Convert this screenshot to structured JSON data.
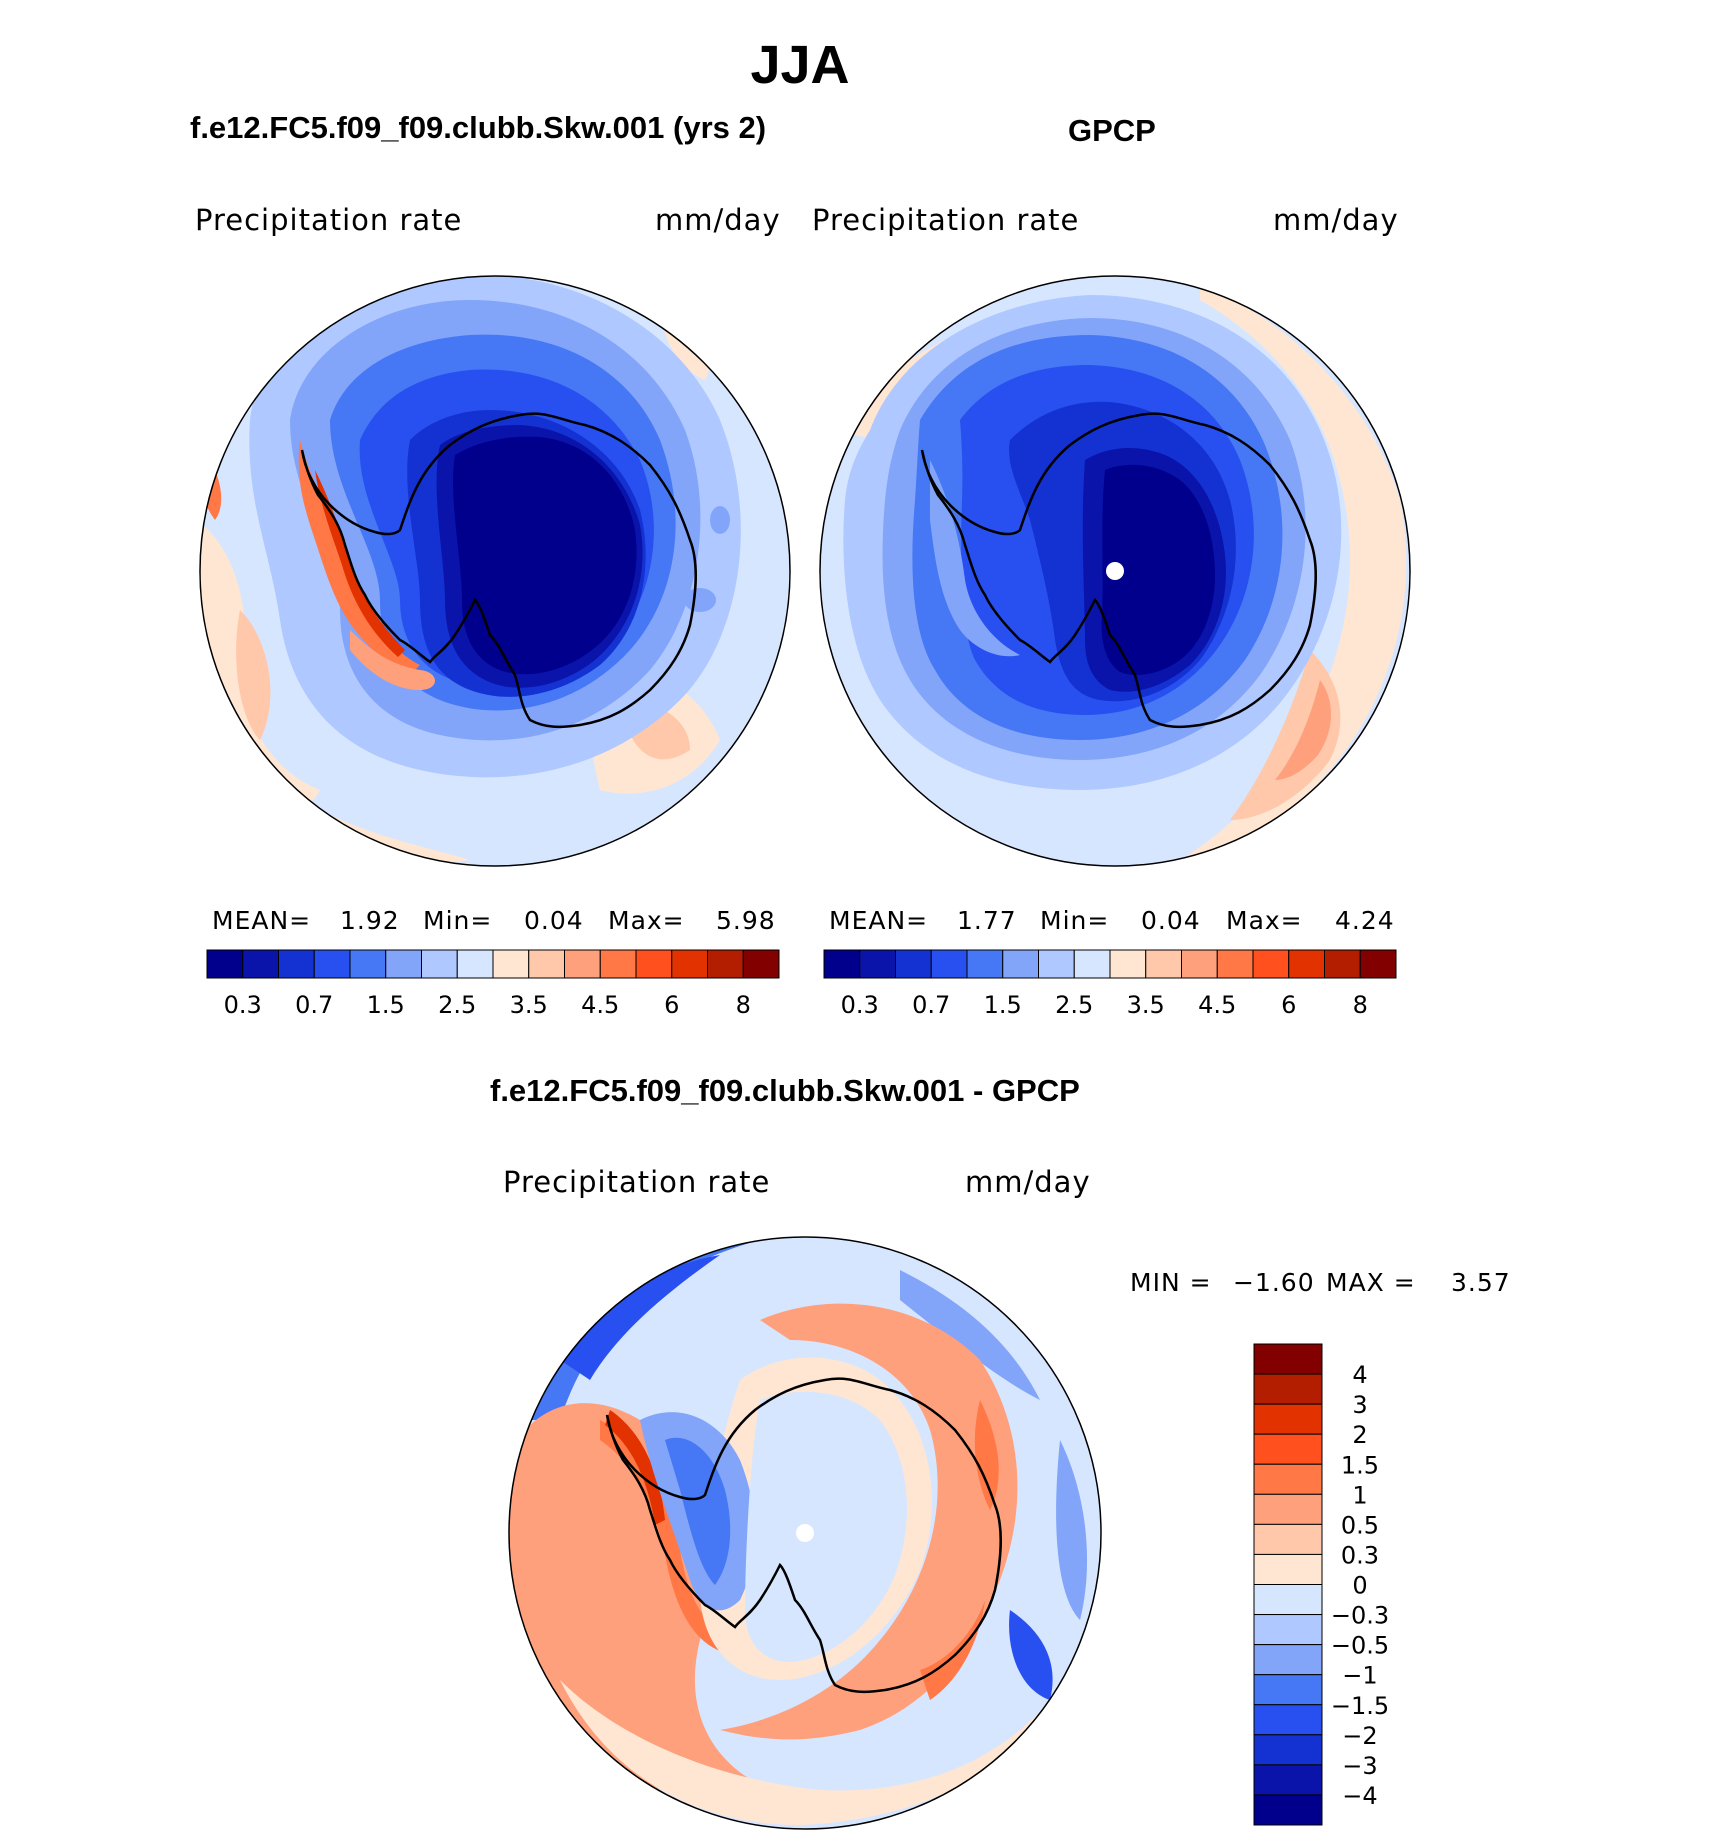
{
  "main_title": "JJA",
  "panels": [
    {
      "title": "f.e12.FC5.f09_f09.clubb.Skw.001 (yrs 2)",
      "left_label": "Precipitation  rate",
      "right_label": "mm/day",
      "stats": {
        "mean_label": "MEAN=",
        "mean": "1.92",
        "min_label": "Min=",
        "min": "0.04",
        "max_label": "Max=",
        "max": "5.98"
      }
    },
    {
      "title": "GPCP",
      "left_label": "Precipitation  rate",
      "right_label": "mm/day",
      "stats": {
        "mean_label": "MEAN=",
        "mean": "1.77",
        "min_label": "Min=",
        "min": "0.04",
        "max_label": "Max=",
        "max": "4.24"
      }
    },
    {
      "title": "f.e12.FC5.f09_f09.clubb.Skw.001 - GPCP",
      "left_label": "Precipitation  rate",
      "right_label": "mm/day",
      "stats": {
        "min_label": "MIN =",
        "min": "−1.60",
        "max_label": "MAX =",
        "max": "3.57"
      }
    }
  ],
  "abs_colorbar": {
    "ticks": [
      "0.3",
      "0.7",
      "1.5",
      "2.5",
      "3.5",
      "4.5",
      "6",
      "8"
    ],
    "colors": [
      "#00008c",
      "#0a14aa",
      "#1432d2",
      "#2850f0",
      "#4678f5",
      "#82a5fa",
      "#afc8ff",
      "#d7e6ff",
      "#ffe6d2",
      "#ffc8aa",
      "#ffa07d",
      "#ff7846",
      "#ff501e",
      "#e13200",
      "#b41e00",
      "#820000"
    ]
  },
  "diff_colorbar": {
    "ticks": [
      "4",
      "3",
      "2",
      "1.5",
      "1",
      "0.5",
      "0.3",
      "0",
      "−0.3",
      "−0.5",
      "−1",
      "−1.5",
      "−2",
      "−3",
      "−4"
    ],
    "colors_top_to_bottom": [
      "#820000",
      "#b41e00",
      "#e13200",
      "#ff501e",
      "#ff7846",
      "#ffa07d",
      "#ffc8aa",
      "#ffe6d2",
      "#d7e6ff",
      "#afc8ff",
      "#82a5fa",
      "#4678f5",
      "#2850f0",
      "#1432d2",
      "#0a14aa",
      "#00008c"
    ]
  },
  "map_colors": {
    "ice_dark": "#00008c",
    "deep_blue": "#0a14aa",
    "blue": "#1432d2",
    "mid_blue": "#2850f0",
    "light_blue": "#4678f5",
    "pale_blue": "#82a5fa",
    "paler_blue": "#afc8ff",
    "palest_blue": "#d7e6ff",
    "cream": "#ffe6d2",
    "peach": "#ffc8aa",
    "salmon": "#ffa07d",
    "orange": "#ff7846",
    "red_orange": "#ff501e",
    "red": "#e13200"
  }
}
